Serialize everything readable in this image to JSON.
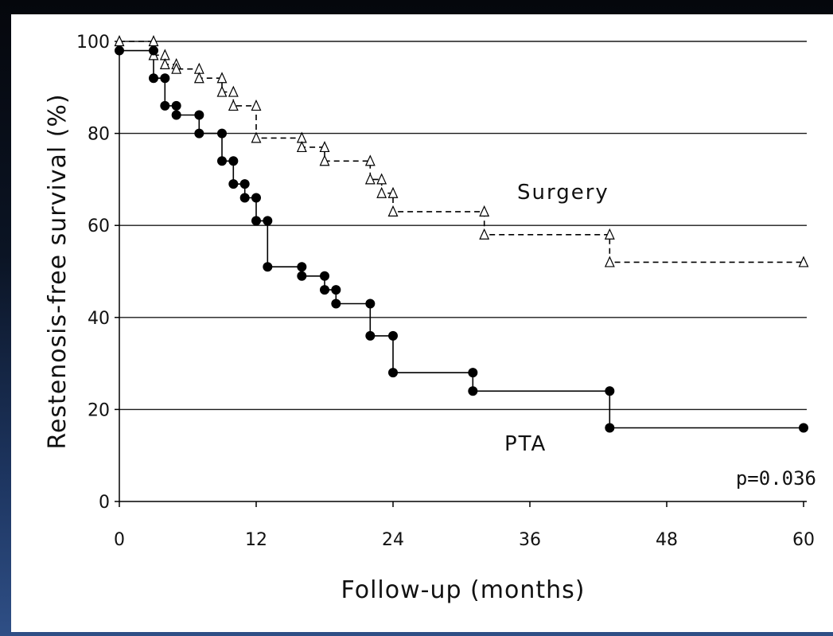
{
  "chart_data": {
    "type": "line",
    "subtype": "kaplan-meier step",
    "xlabel": "Follow-up (months)",
    "ylabel": "Restenosis-free survival (%)",
    "xlim": [
      0,
      60
    ],
    "ylim": [
      0,
      100
    ],
    "xticks": [
      "0",
      "12",
      "24",
      "36",
      "48",
      "60"
    ],
    "yticks": [
      "0",
      "20",
      "40",
      "60",
      "80",
      "100"
    ],
    "grid": "horizontal",
    "annotation": "p=0.036",
    "series": [
      {
        "name": "Surgery",
        "line_style": "dashed",
        "marker": "open-triangle",
        "color": "#000000",
        "x": [
          0,
          3,
          3,
          4,
          4,
          5,
          5,
          7,
          7,
          9,
          9,
          10,
          10,
          12,
          12,
          16,
          16,
          18,
          18,
          22,
          22,
          23,
          23,
          24,
          24,
          32,
          32,
          43,
          43,
          60
        ],
        "y": [
          100,
          100,
          97,
          97,
          95,
          95,
          94,
          94,
          92,
          92,
          89,
          89,
          86,
          86,
          79,
          79,
          77,
          77,
          74,
          74,
          70,
          70,
          67,
          67,
          63,
          63,
          58,
          58,
          52,
          52
        ]
      },
      {
        "name": "PTA",
        "line_style": "solid",
        "marker": "filled-circle",
        "color": "#000000",
        "x": [
          0,
          3,
          3,
          4,
          4,
          5,
          5,
          7,
          7,
          9,
          9,
          10,
          10,
          11,
          11,
          12,
          12,
          13,
          13,
          16,
          16,
          18,
          18,
          19,
          19,
          22,
          22,
          24,
          24,
          31,
          31,
          43,
          43,
          60
        ],
        "y": [
          98,
          98,
          92,
          92,
          86,
          86,
          84,
          84,
          80,
          80,
          74,
          74,
          69,
          69,
          66,
          66,
          61,
          61,
          51,
          51,
          49,
          49,
          46,
          46,
          43,
          43,
          36,
          36,
          28,
          28,
          24,
          24,
          16,
          16
        ]
      }
    ]
  },
  "labels": {
    "surgery": "Surgery",
    "pta": "PTA",
    "pvalue": "p=0.036"
  }
}
